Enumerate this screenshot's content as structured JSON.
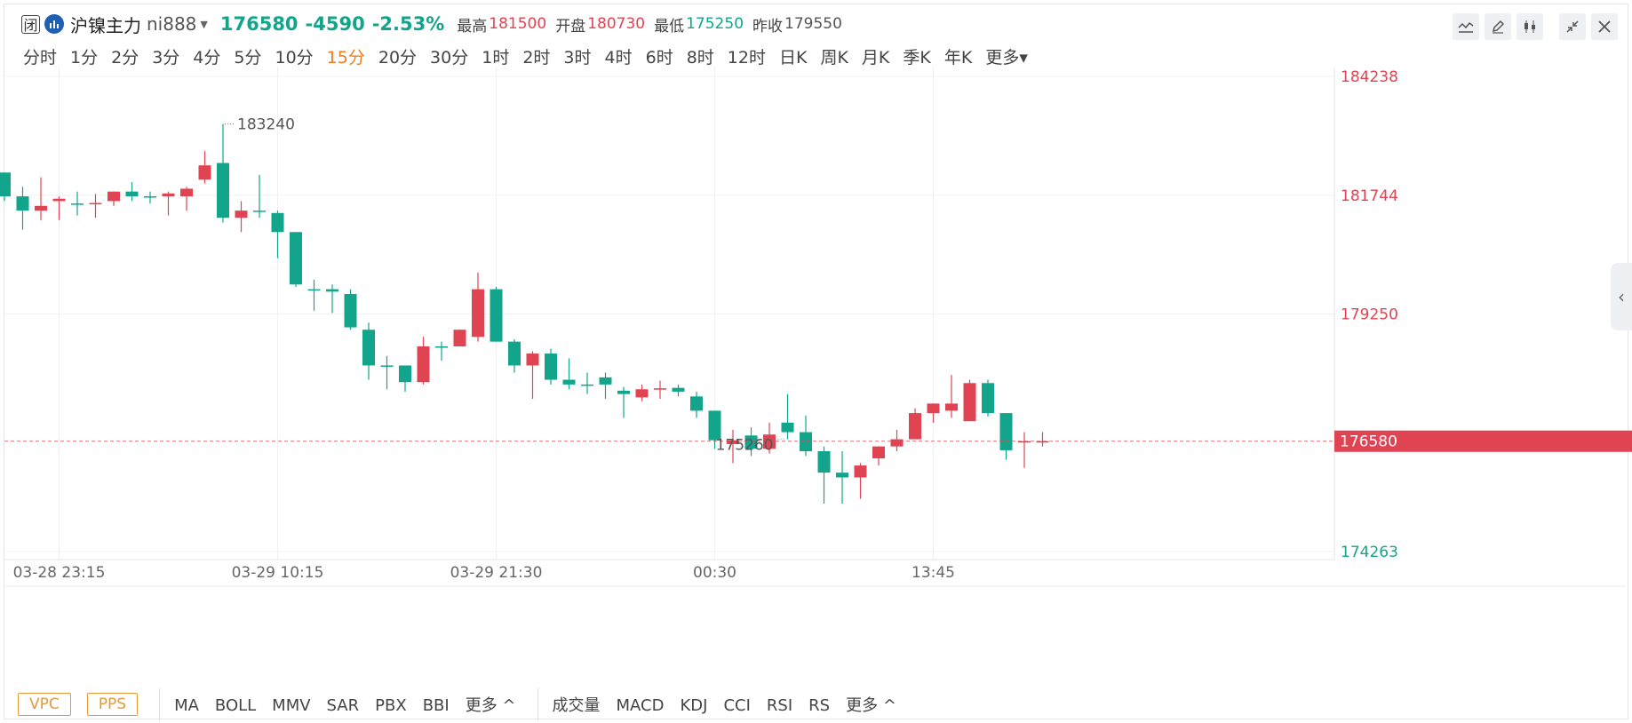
{
  "header": {
    "status": "闭",
    "name": "沪镍主力",
    "code": "ni888",
    "price": "176580",
    "change": "-4590",
    "change_pct": "-2.53%",
    "high_label": "最高",
    "high": "181500",
    "open_label": "开盘",
    "open": "180730",
    "low_label": "最低",
    "low": "175250",
    "prev_close_label": "昨收",
    "prev_close": "179550"
  },
  "periods": [
    "分时",
    "1分",
    "2分",
    "3分",
    "4分",
    "5分",
    "10分",
    "15分",
    "20分",
    "30分",
    "1时",
    "2时",
    "3时",
    "4时",
    "6时",
    "8时",
    "12时",
    "日K",
    "周K",
    "月K",
    "季K",
    "年K",
    "更多"
  ],
  "active_period": "15分",
  "toolbar": [
    "line-tool-icon",
    "pencil-icon",
    "candle-style-icon",
    "collapse-icon",
    "close-icon"
  ],
  "colors": {
    "up": "#e04453",
    "down": "#12a58b",
    "active": "#f07c22",
    "indicator_btn": "#e39a3a"
  },
  "bottom_bar": {
    "main_buttons": [
      "VPC",
      "PPS"
    ],
    "main_indicators": [
      "MA",
      "BOLL",
      "MMV",
      "SAR",
      "PBX",
      "BBI",
      "更多 ^"
    ],
    "sub_indicators": [
      "成交量",
      "MACD",
      "KDJ",
      "CCI",
      "RSI",
      "RS",
      "更多 ^"
    ]
  },
  "chart_data": {
    "type": "candlestick",
    "y_ticks": [
      184238,
      181744,
      179250,
      176580,
      174263
    ],
    "last_price": 176580,
    "x_ticks": [
      {
        "label": "03-28 23:15",
        "index": 3
      },
      {
        "label": "03-29 10:15",
        "index": 15
      },
      {
        "label": "03-29 21:30",
        "index": 27
      },
      {
        "label": "00:30",
        "index": 39
      },
      {
        "label": "13:45",
        "index": 51
      }
    ],
    "max_annotation": {
      "label": "183240",
      "index": 12
    },
    "min_annotation": {
      "label": "175260",
      "index": 43
    },
    "candles": [
      {
        "o": 182220,
        "c": 181720,
        "h": 182220,
        "l": 181620
      },
      {
        "o": 181720,
        "c": 181420,
        "h": 181920,
        "l": 181020
      },
      {
        "o": 181420,
        "c": 181520,
        "h": 182120,
        "l": 181220
      },
      {
        "o": 181620,
        "c": 181670,
        "h": 181720,
        "l": 181220
      },
      {
        "o": 181570,
        "c": 181570,
        "h": 181820,
        "l": 181320
      },
      {
        "o": 181570,
        "c": 181580,
        "h": 181770,
        "l": 181270
      },
      {
        "o": 181620,
        "c": 181820,
        "h": 181820,
        "l": 181520
      },
      {
        "o": 181820,
        "c": 181720,
        "h": 182020,
        "l": 181620
      },
      {
        "o": 181720,
        "c": 181700,
        "h": 181820,
        "l": 181570
      },
      {
        "o": 181720,
        "c": 181780,
        "h": 181820,
        "l": 181320
      },
      {
        "o": 181720,
        "c": 181880,
        "h": 181920,
        "l": 181420
      },
      {
        "o": 182070,
        "c": 182370,
        "h": 182670,
        "l": 181990
      },
      {
        "o": 182420,
        "c": 181270,
        "h": 183240,
        "l": 181170
      },
      {
        "o": 181270,
        "c": 181420,
        "h": 181620,
        "l": 180970
      },
      {
        "o": 181420,
        "c": 181420,
        "h": 182170,
        "l": 181270
      },
      {
        "o": 181370,
        "c": 180970,
        "h": 181420,
        "l": 180420
      },
      {
        "o": 180970,
        "c": 179870,
        "h": 180970,
        "l": 179820
      },
      {
        "o": 179770,
        "c": 179770,
        "h": 179970,
        "l": 179320
      },
      {
        "o": 179770,
        "c": 179720,
        "h": 179870,
        "l": 179270
      },
      {
        "o": 179670,
        "c": 178970,
        "h": 179770,
        "l": 178920
      },
      {
        "o": 178920,
        "c": 178170,
        "h": 179070,
        "l": 177870
      },
      {
        "o": 178170,
        "c": 178170,
        "h": 178370,
        "l": 177670
      },
      {
        "o": 178170,
        "c": 177820,
        "h": 178170,
        "l": 177620
      },
      {
        "o": 177820,
        "c": 178570,
        "h": 178770,
        "l": 177770
      },
      {
        "o": 178570,
        "c": 178570,
        "h": 178670,
        "l": 178270
      },
      {
        "o": 178570,
        "c": 178920,
        "h": 178920,
        "l": 178570
      },
      {
        "o": 178770,
        "c": 179770,
        "h": 180120,
        "l": 178670
      },
      {
        "o": 179770,
        "c": 178670,
        "h": 179820,
        "l": 178670
      },
      {
        "o": 178670,
        "c": 178170,
        "h": 178720,
        "l": 178020
      },
      {
        "o": 178170,
        "c": 178420,
        "h": 178470,
        "l": 177470
      },
      {
        "o": 178420,
        "c": 177870,
        "h": 178520,
        "l": 177770
      },
      {
        "o": 177870,
        "c": 177770,
        "h": 178320,
        "l": 177670
      },
      {
        "o": 177770,
        "c": 177770,
        "h": 178020,
        "l": 177570
      },
      {
        "o": 177920,
        "c": 177770,
        "h": 178020,
        "l": 177470
      },
      {
        "o": 177640,
        "c": 177570,
        "h": 177720,
        "l": 177070
      },
      {
        "o": 177500,
        "c": 177670,
        "h": 177770,
        "l": 177420
      },
      {
        "o": 177670,
        "c": 177690,
        "h": 177850,
        "l": 177470
      },
      {
        "o": 177700,
        "c": 177620,
        "h": 177770,
        "l": 177520
      },
      {
        "o": 177520,
        "c": 177220,
        "h": 177620,
        "l": 177070
      },
      {
        "o": 177220,
        "c": 176600,
        "h": 177220,
        "l": 176420
      },
      {
        "o": 176520,
        "c": 176600,
        "h": 176820,
        "l": 176120
      },
      {
        "o": 176700,
        "c": 176420,
        "h": 176870,
        "l": 176270
      },
      {
        "o": 176420,
        "c": 176720,
        "h": 176970,
        "l": 176320
      },
      {
        "o": 176970,
        "c": 176770,
        "h": 177570,
        "l": 176620
      },
      {
        "o": 176770,
        "c": 176370,
        "h": 177120,
        "l": 176270
      },
      {
        "o": 176370,
        "c": 175920,
        "h": 176470,
        "l": 175270
      },
      {
        "o": 175920,
        "c": 175820,
        "h": 176370,
        "l": 175270
      },
      {
        "o": 175820,
        "c": 176070,
        "h": 176120,
        "l": 175370
      },
      {
        "o": 176220,
        "c": 176470,
        "h": 176470,
        "l": 176070
      },
      {
        "o": 176470,
        "c": 176620,
        "h": 176820,
        "l": 176370
      },
      {
        "o": 176620,
        "c": 177170,
        "h": 177270,
        "l": 176620
      },
      {
        "o": 177170,
        "c": 177370,
        "h": 177370,
        "l": 176970
      },
      {
        "o": 177220,
        "c": 177370,
        "h": 177970,
        "l": 177070
      },
      {
        "o": 177000,
        "c": 177800,
        "h": 177870,
        "l": 177000
      },
      {
        "o": 177800,
        "c": 177170,
        "h": 177870,
        "l": 177100
      },
      {
        "o": 177170,
        "c": 176390,
        "h": 177170,
        "l": 176190
      },
      {
        "o": 176570,
        "c": 176580,
        "h": 176770,
        "l": 176020
      },
      {
        "o": 176570,
        "c": 176580,
        "h": 176770,
        "l": 176470
      }
    ]
  }
}
